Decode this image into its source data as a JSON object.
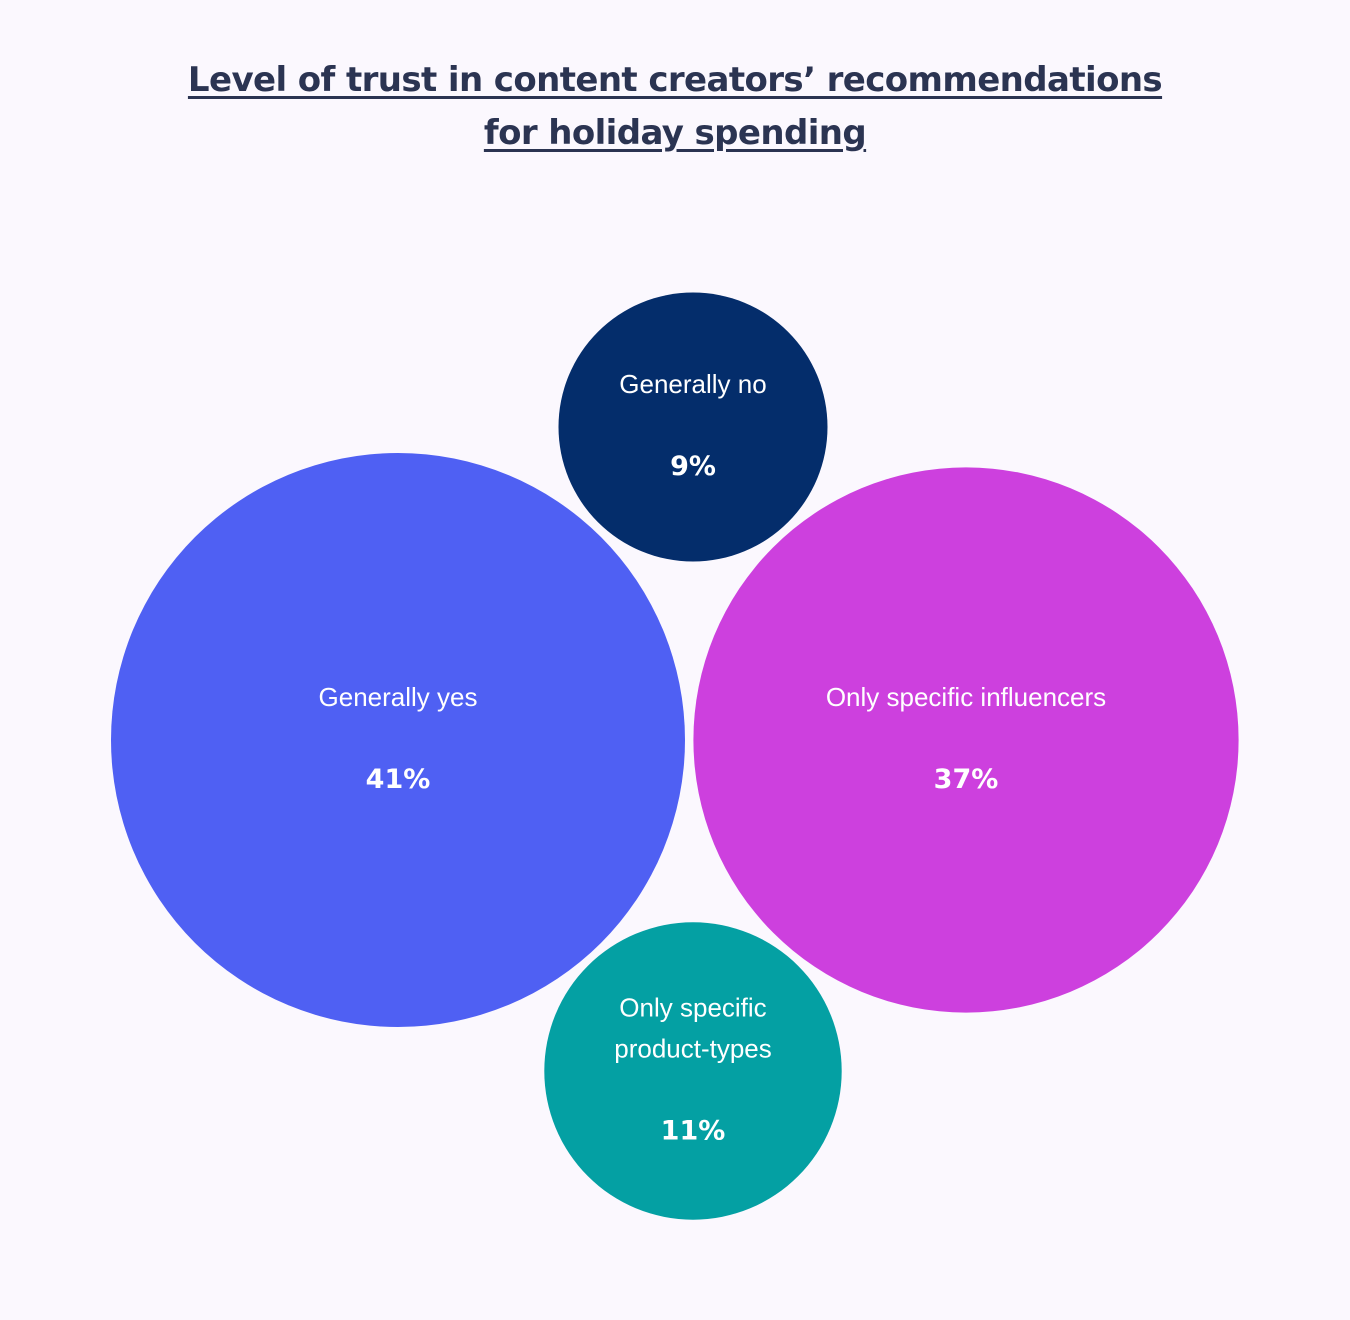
{
  "chart_data": {
    "type": "bubble",
    "title_line1": "Level of trust in content creators’ recommendations",
    "title_line2": "for holiday spending",
    "bubbles": [
      {
        "label_lines": [
          "Generally yes"
        ],
        "value": 41,
        "value_label": "41%",
        "color": "#4f60f3"
      },
      {
        "label_lines": [
          "Generally no"
        ],
        "value": 9,
        "value_label": "9%",
        "color": "#042d6b"
      },
      {
        "label_lines": [
          "Only specific influencers"
        ],
        "value": 37,
        "value_label": "37%",
        "color": "#cd40de"
      },
      {
        "label_lines": [
          "Only specific",
          "product-types"
        ],
        "value": 11,
        "value_label": "11%",
        "color": "#04a0a3"
      }
    ]
  }
}
